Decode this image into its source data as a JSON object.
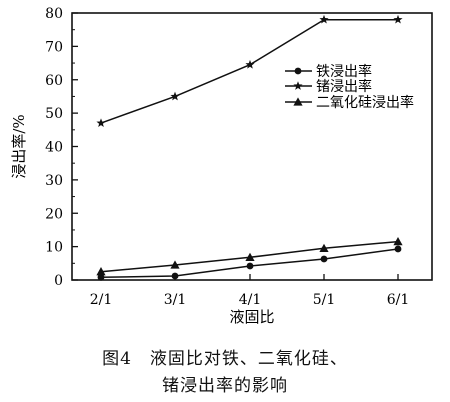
{
  "chart_data": {
    "type": "line",
    "xlabel": "液固比",
    "ylabel": "浸出率/%",
    "categories": [
      "2/1",
      "3/1",
      "4/1",
      "5/1",
      "6/1"
    ],
    "ylim": [
      0,
      80
    ],
    "yticks": [
      0,
      10,
      20,
      30,
      40,
      50,
      60,
      70,
      80
    ],
    "legend_position": "center-right",
    "series": [
      {
        "name": "铁浸出率",
        "marker": "circle",
        "values": [
          0.8,
          1.2,
          4.2,
          6.3,
          9.3
        ]
      },
      {
        "name": "锗浸出率",
        "marker": "star",
        "values": [
          47,
          55,
          64.5,
          78,
          78
        ]
      },
      {
        "name": "二氧化硅浸出率",
        "marker": "triangle",
        "values": [
          2.5,
          4.5,
          6.8,
          9.5,
          11.5
        ]
      }
    ]
  },
  "caption": {
    "line1": "图4　液固比对铁、二氧化硅、",
    "line2": "锗浸出率的影响"
  }
}
